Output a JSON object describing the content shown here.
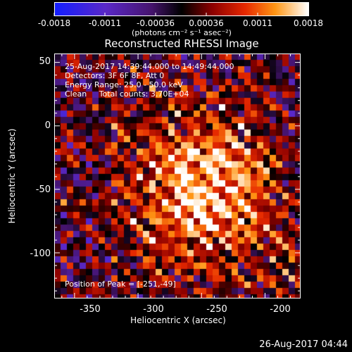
{
  "colorbar": {
    "labels": [
      "-0.0018",
      "-0.0011",
      "-0.00036",
      "0.00036",
      "0.0011",
      "0.0018"
    ],
    "units": "(photons cm⁻² s⁻¹ asec⁻²)"
  },
  "title": "Reconstructed RHESSI Image",
  "annotations": {
    "time_range": "25-Aug-2017 14:39:44.000 to 14:49:44.000",
    "detectors": "Detectors: 3F 6F 8F, Att 0",
    "energy_range": "Energy Range: 25.0 - 50.0 keV",
    "clean": "Clean     Total counts: 3.70E+04",
    "peak": "Position of Peak = [-251,-49]"
  },
  "axes": {
    "xlabel": "Heliocentric X (arcsec)",
    "ylabel": "Heliocentric Y (arcsec)",
    "x_ticks": [
      "-350",
      "-300",
      "-250",
      "-200"
    ],
    "y_ticks": [
      "50",
      "0",
      "-50",
      "-100"
    ],
    "x_range": [
      -366,
      -172
    ],
    "y_range": [
      -136,
      57
    ],
    "peak": [
      -251,
      -49
    ]
  },
  "timestamp": "26-Aug-2017 04:44"
}
